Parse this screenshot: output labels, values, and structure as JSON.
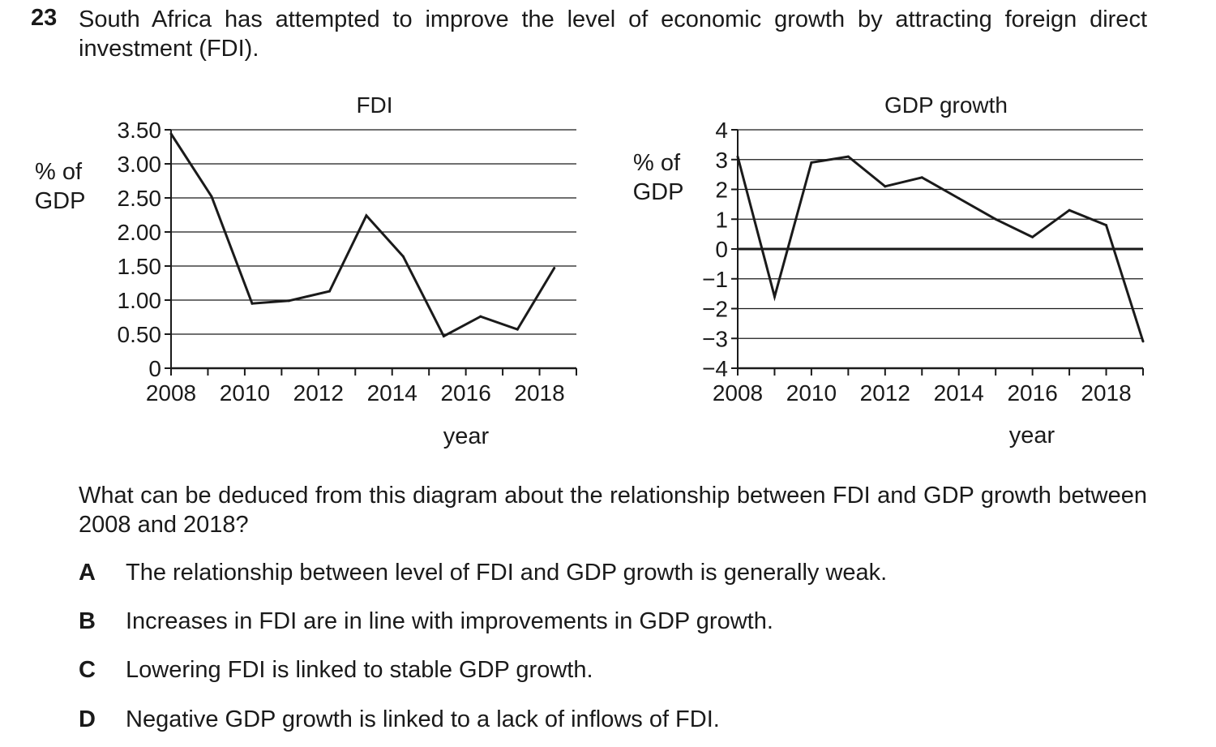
{
  "question": {
    "number": "23",
    "stem": "South Africa has attempted to improve the level of economic growth by attracting foreign direct investment (FDI).",
    "prompt": "What can be deduced from this diagram about the relationship between FDI and GDP growth between 2008 and 2018?",
    "options": [
      {
        "letter": "A",
        "text": "The relationship between level of FDI and GDP growth is generally weak."
      },
      {
        "letter": "B",
        "text": "Increases in FDI are in line with improvements in GDP growth."
      },
      {
        "letter": "C",
        "text": "Lowering FDI is linked to stable GDP growth."
      },
      {
        "letter": "D",
        "text": "Negative GDP growth is linked to a lack of inflows of FDI."
      }
    ]
  },
  "chart_data": [
    {
      "type": "line",
      "title": "FDI",
      "ylabel": [
        "% of",
        "GDP"
      ],
      "xlabel": "year",
      "xlim": [
        2008,
        2019
      ],
      "ylim": [
        0,
        3.5
      ],
      "yticks": [
        0,
        0.5,
        1.0,
        1.5,
        2.0,
        2.5,
        3.0,
        3.5
      ],
      "ytick_labels": [
        "0",
        "0.50",
        "1.00",
        "1.50",
        "2.00",
        "2.50",
        "3.00",
        "3.50"
      ],
      "xticks": [
        2008,
        2009,
        2010,
        2011,
        2012,
        2013,
        2014,
        2015,
        2016,
        2017,
        2018,
        2019
      ],
      "xtick_labels": [
        "2008",
        "",
        "2010",
        "",
        "2012",
        "",
        "2014",
        "",
        "2016",
        "",
        "2018",
        ""
      ],
      "grid": true,
      "x": [
        2008,
        2009.1,
        2010.2,
        2011.2,
        2012.3,
        2013.3,
        2014.3,
        2015.4,
        2016.4,
        2017.4,
        2018.4
      ],
      "y": [
        3.44,
        2.52,
        0.95,
        0.99,
        1.13,
        2.24,
        1.64,
        0.47,
        0.76,
        0.57,
        1.47
      ]
    },
    {
      "type": "line",
      "title": "GDP growth",
      "ylabel": [
        "% of",
        "GDP"
      ],
      "xlabel": "year",
      "xlim": [
        2008,
        2019
      ],
      "ylim": [
        -4,
        4
      ],
      "yticks": [
        -4,
        -3,
        -2,
        -1,
        0,
        1,
        2,
        3,
        4
      ],
      "ytick_labels": [
        "−4",
        "−3",
        "−2",
        "−1",
        "0",
        "1",
        "2",
        "3",
        "4"
      ],
      "xticks": [
        2008,
        2009,
        2010,
        2011,
        2012,
        2013,
        2014,
        2015,
        2016,
        2017,
        2018,
        2019
      ],
      "xtick_labels": [
        "2008",
        "",
        "2010",
        "",
        "2012",
        "",
        "2014",
        "",
        "2016",
        "",
        "2018",
        ""
      ],
      "grid": true,
      "x": [
        2008,
        2009,
        2010,
        2011,
        2012,
        2013,
        2014,
        2015,
        2016,
        2017,
        2018,
        2019
      ],
      "y": [
        3.1,
        -1.6,
        2.9,
        3.1,
        2.1,
        2.4,
        1.7,
        1.0,
        0.4,
        1.3,
        0.8,
        -3.1
      ]
    }
  ]
}
